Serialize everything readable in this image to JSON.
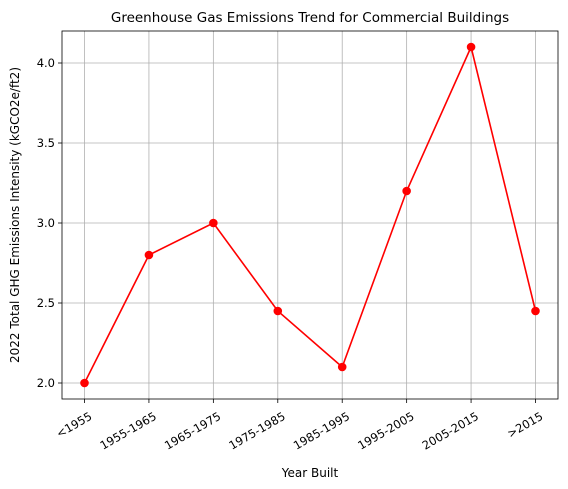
{
  "chart_data": {
    "type": "line",
    "title": "Greenhouse Gas Emissions Trend for Commercial Buildings",
    "xlabel": "Year Built",
    "ylabel": "2022 Total GHG Emissions Intensity (kGCO2e/ft2)",
    "categories": [
      "<1955",
      "1955-1965",
      "1965-1975",
      "1975-1985",
      "1985-1995",
      "1995-2005",
      "2005-2015",
      ">2015"
    ],
    "values": [
      2.0,
      2.8,
      3.0,
      2.45,
      2.1,
      3.2,
      4.1,
      2.45
    ],
    "ylim": [
      1.9,
      4.2
    ],
    "yticks": [
      "2.0",
      "2.5",
      "3.0",
      "3.5",
      "4.0"
    ],
    "grid": true,
    "line_color": "#ff0000",
    "marker_color": "#ff0000"
  }
}
